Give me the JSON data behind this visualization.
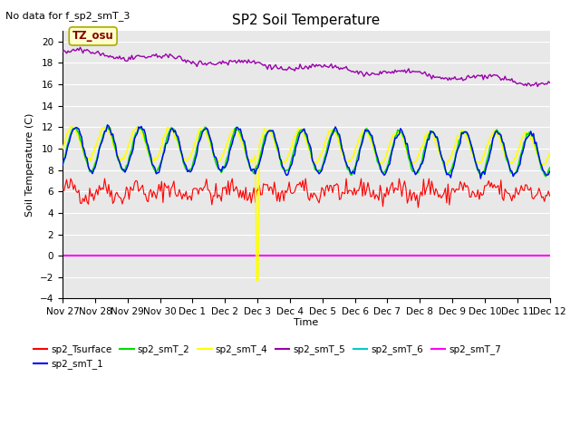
{
  "title": "SP2 Soil Temperature",
  "no_data_label": "No data for f_sp2_smT_3",
  "ylabel": "Soil Temperature (C)",
  "xlabel": "Time",
  "tz_label": "TZ_osu",
  "ylim": [
    -4,
    21
  ],
  "yticks": [
    -4,
    -2,
    0,
    2,
    4,
    6,
    8,
    10,
    12,
    14,
    16,
    18,
    20
  ],
  "background_color": "#e8e8e8",
  "fig_background": "#ffffff",
  "grid_color": "#ffffff",
  "series_colors": {
    "sp2_Tsurface": "#ff0000",
    "sp2_smT_1": "#0000ff",
    "sp2_smT_2": "#00dd00",
    "sp2_smT_4": "#ffff00",
    "sp2_smT_5": "#9900aa",
    "sp2_smT_6": "#00cccc",
    "sp2_smT_7": "#ff00ff"
  },
  "legend_entries": [
    {
      "label": "sp2_Tsurface",
      "color": "#ff0000"
    },
    {
      "label": "sp2_smT_1",
      "color": "#0000ff"
    },
    {
      "label": "sp2_smT_2",
      "color": "#00dd00"
    },
    {
      "label": "sp2_smT_4",
      "color": "#ffff00"
    },
    {
      "label": "sp2_smT_5",
      "color": "#9900aa"
    },
    {
      "label": "sp2_smT_6",
      "color": "#00cccc"
    },
    {
      "label": "sp2_smT_7",
      "color": "#ff00ff"
    }
  ],
  "x_tick_labels": [
    "Nov 27",
    "Nov 28",
    "Nov 29",
    "Nov 30",
    "Dec 1",
    "Dec 2",
    "Dec 3",
    "Dec 4",
    "Dec 5",
    "Dec 6",
    "Dec 7",
    "Dec 8",
    "Dec 9",
    "Dec 10",
    "Dec 11",
    "Dec 12"
  ],
  "x_tick_positions": [
    0,
    1,
    2,
    3,
    4,
    5,
    6,
    7,
    8,
    9,
    10,
    11,
    12,
    13,
    14,
    15
  ]
}
